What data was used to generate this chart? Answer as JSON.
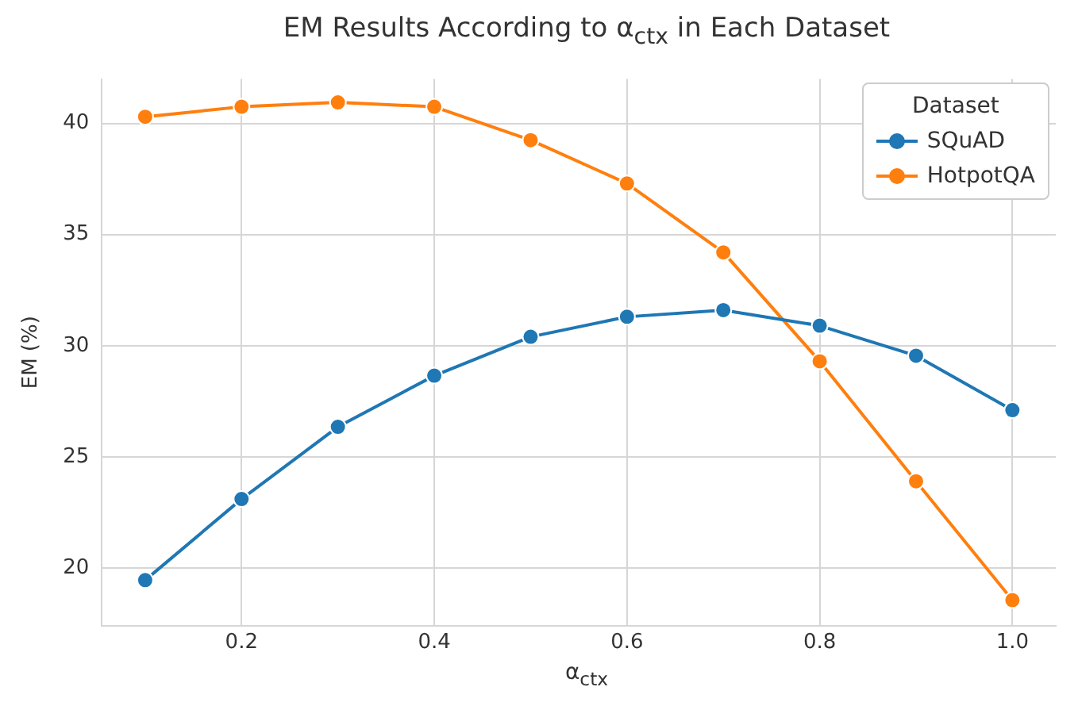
{
  "chart_data": {
    "type": "line",
    "title": "EM Results According to α$_{ctx}$ in Each Dataset",
    "xlabel": "α$_{ctx}$",
    "ylabel": "EM (%)",
    "legend_title": "Dataset",
    "x": [
      0.1,
      0.2,
      0.3,
      0.4,
      0.5,
      0.6,
      0.7,
      0.8,
      0.9,
      1.0
    ],
    "series": [
      {
        "name": "SQuAD",
        "color": "#1f77b4",
        "values": [
          19.45,
          23.1,
          26.35,
          28.65,
          30.4,
          31.3,
          31.6,
          30.9,
          29.55,
          27.1
        ]
      },
      {
        "name": "HotpotQA",
        "color": "#ff7f0e",
        "values": [
          40.3,
          40.75,
          40.95,
          40.75,
          39.25,
          37.3,
          34.2,
          29.3,
          23.9,
          18.55
        ]
      }
    ],
    "xlim": [
      0.055,
      1.045
    ],
    "ylim": [
      17.4,
      42.0
    ],
    "xticks": [
      0.2,
      0.4,
      0.6,
      0.8,
      {
        "value": 1,
        "label": "1.0"
      }
    ],
    "yticks": [
      20,
      25,
      30,
      35,
      40
    ],
    "grid": true,
    "legend": "top right",
    "marker": "circle",
    "line_style": "solid"
  }
}
